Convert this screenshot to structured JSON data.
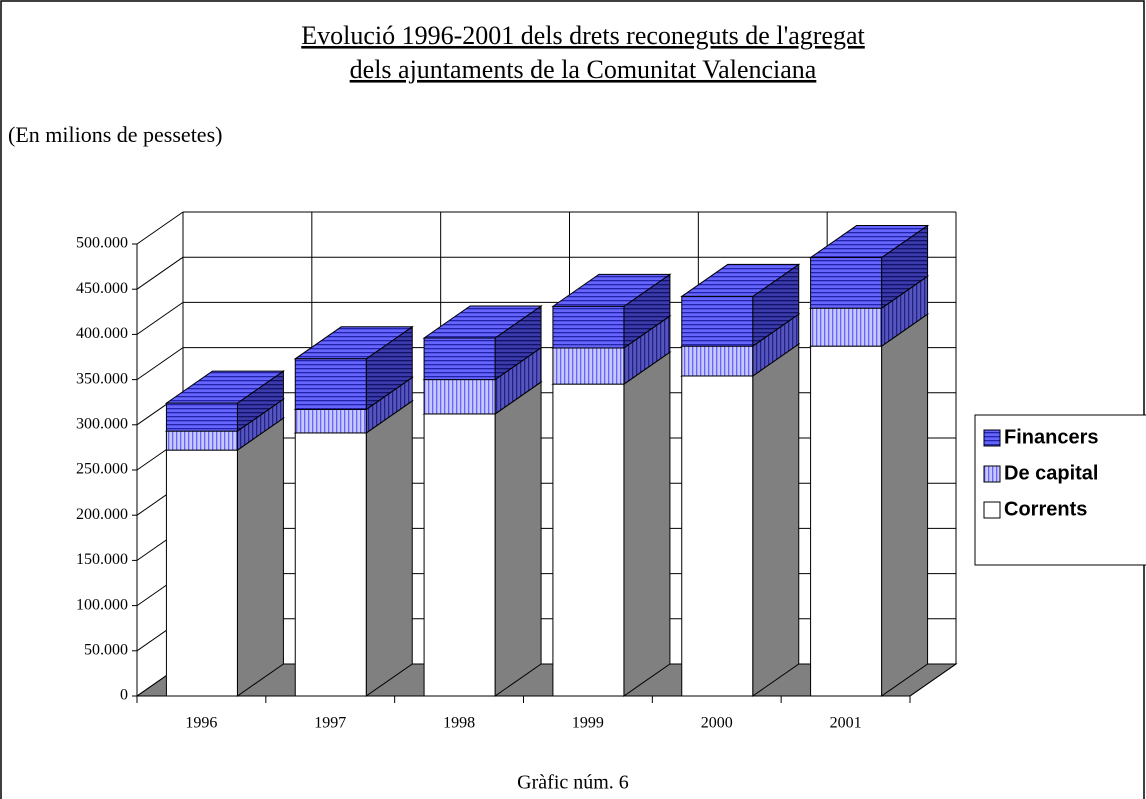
{
  "chart_data": {
    "type": "bar3d_stacked",
    "title_lines": [
      "Evolució 1996-2001 dels drets reconeguts de l'agregat",
      "dels ajuntaments de la Comunitat Valenciana"
    ],
    "subtitle": "(En milions de pessetes)",
    "caption": "Gràfic núm. 6",
    "categories": [
      "1996",
      "1997",
      "1998",
      "1999",
      "2000",
      "2001"
    ],
    "series": [
      {
        "name": "Corrents",
        "color": "#ffffff",
        "values": [
          272000,
          291000,
          312000,
          345000,
          354000,
          387000
        ]
      },
      {
        "name": "De capital",
        "color": "#9999ff",
        "values": [
          21000,
          26000,
          38000,
          40000,
          33000,
          42000
        ]
      },
      {
        "name": "Financers",
        "color": "#6666ff",
        "values": [
          31000,
          56000,
          46000,
          46000,
          55000,
          56000
        ]
      }
    ],
    "ylim": [
      0,
      500000
    ],
    "yticks": [
      0,
      {
        "value": 50000,
        "label": "50.000"
      },
      {
        "value": 100000,
        "label": "100.000"
      },
      {
        "value": 150000,
        "label": "150.000"
      },
      {
        "value": 200000,
        "label": "200.000"
      },
      {
        "value": 250000,
        "label": "250.000"
      },
      {
        "value": 300000,
        "label": "300.000"
      },
      {
        "value": 350000,
        "label": "350.000"
      },
      {
        "value": 400000,
        "label": "400.000"
      },
      {
        "value": 450000,
        "label": "450.000"
      },
      {
        "value": 500000,
        "label": "500.000"
      }
    ],
    "grid": true,
    "legend": "right"
  }
}
